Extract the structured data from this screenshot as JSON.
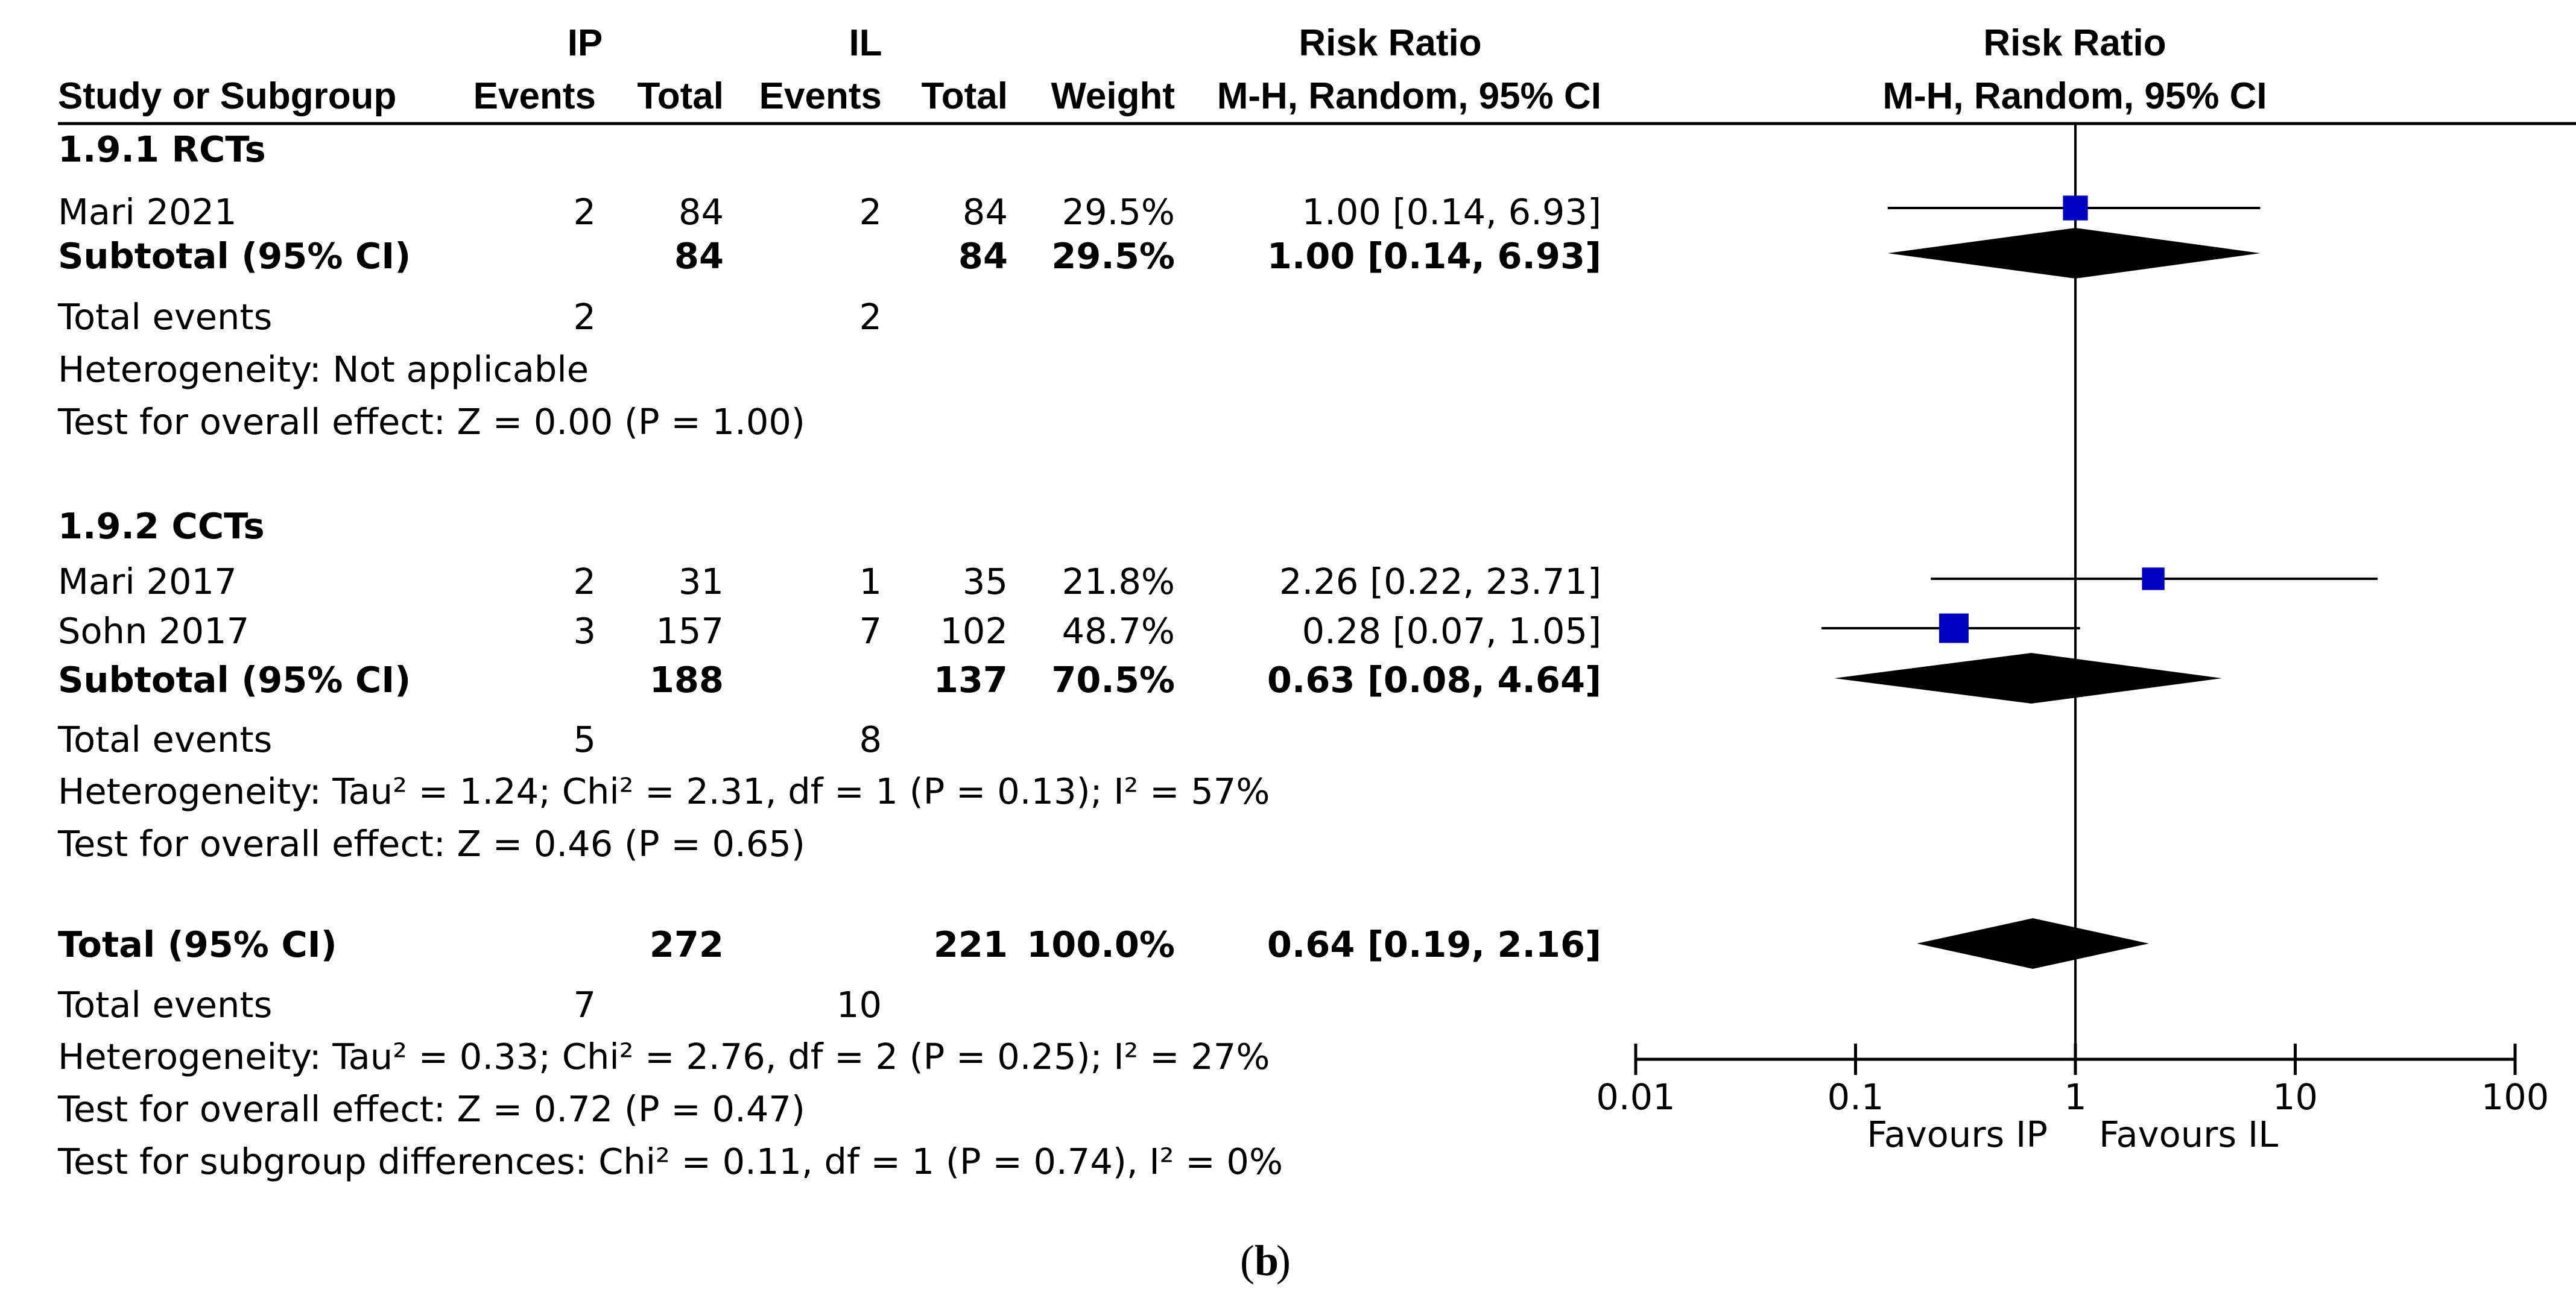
{
  "chart_data": {
    "type": "forest",
    "header": {
      "group1": "IP",
      "group2": "IL",
      "col_study": "Study or Subgroup",
      "col_events": "Events",
      "col_total": "Total",
      "col_weight": "Weight",
      "col_effect_title": "Risk Ratio",
      "col_effect_method": "M-H, Random, 95% CI",
      "plot_title": "Risk Ratio",
      "plot_method": "M-H, Random, 95% CI"
    },
    "subgroups": [
      {
        "name": "1.9.1 RCTs",
        "studies": [
          {
            "study": "Mari 2021",
            "ev1": "2",
            "tot1": "84",
            "ev2": "2",
            "tot2": "84",
            "weight": "29.5%",
            "effect": "1.00 [0.14, 6.93]",
            "rr": 1.0,
            "lo": 0.14,
            "hi": 6.93,
            "w": 29.5
          }
        ],
        "subtotal": {
          "label": "Subtotal (95% CI)",
          "tot1": "84",
          "tot2": "84",
          "weight": "29.5%",
          "effect": "1.00 [0.14, 6.93]",
          "rr": 1.0,
          "lo": 0.14,
          "hi": 6.93
        },
        "total_events": {
          "label": "Total events",
          "ev1": "2",
          "ev2": "2"
        },
        "heterogeneity": "Heterogeneity: Not applicable",
        "overall_effect": "Test for overall effect: Z = 0.00 (P = 1.00)"
      },
      {
        "name": "1.9.2 CCTs",
        "studies": [
          {
            "study": "Mari 2017",
            "ev1": "2",
            "tot1": "31",
            "ev2": "1",
            "tot2": "35",
            "weight": "21.8%",
            "effect": "2.26 [0.22, 23.71]",
            "rr": 2.26,
            "lo": 0.22,
            "hi": 23.71,
            "w": 21.8
          },
          {
            "study": "Sohn 2017",
            "ev1": "3",
            "tot1": "157",
            "ev2": "7",
            "tot2": "102",
            "weight": "48.7%",
            "effect": "0.28 [0.07, 1.05]",
            "rr": 0.28,
            "lo": 0.07,
            "hi": 1.05,
            "w": 48.7
          }
        ],
        "subtotal": {
          "label": "Subtotal (95% CI)",
          "tot1": "188",
          "tot2": "137",
          "weight": "70.5%",
          "effect": "0.63 [0.08, 4.64]",
          "rr": 0.63,
          "lo": 0.08,
          "hi": 4.64
        },
        "total_events": {
          "label": "Total events",
          "ev1": "5",
          "ev2": "8"
        },
        "heterogeneity": "Heterogeneity: Tau² = 1.24; Chi² = 2.31, df = 1 (P = 0.13); I² = 57%",
        "overall_effect": "Test for overall effect: Z = 0.46 (P = 0.65)"
      }
    ],
    "total": {
      "label": "Total (95% CI)",
      "tot1": "272",
      "tot2": "221",
      "weight": "100.0%",
      "effect": "0.64 [0.19, 2.16]",
      "rr": 0.64,
      "lo": 0.19,
      "hi": 2.16,
      "total_events": {
        "label": "Total events",
        "ev1": "7",
        "ev2": "10"
      },
      "heterogeneity": "Heterogeneity: Tau² = 0.33; Chi² = 2.76, df = 2 (P = 0.25); I² = 27%",
      "overall_effect": "Test for overall effect: Z = 0.72 (P = 0.47)",
      "subgroup_diff": "Test for subgroup differences: Chi² = 0.11, df = 1 (P = 0.74), I² = 0%"
    },
    "axis": {
      "scale": "log",
      "range": [
        0.01,
        100
      ],
      "ticks": [
        0.01,
        0.1,
        1,
        10,
        100
      ],
      "tick_labels": [
        "0.01",
        "0.1",
        "1",
        "10",
        "100"
      ],
      "favours_left": "Favours IP",
      "favours_right": "Favours IL"
    },
    "marker_color": "#0000c0",
    "caption": {
      "open": "(",
      "letter": "b",
      "close": ")"
    }
  }
}
